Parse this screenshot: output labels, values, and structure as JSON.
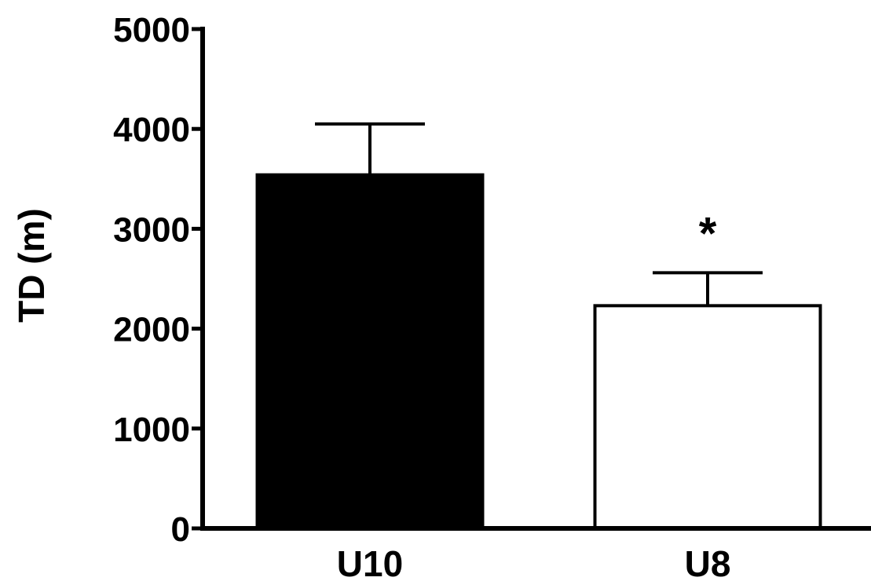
{
  "chart_data": {
    "type": "bar",
    "title": "",
    "xlabel": "",
    "ylabel": "TD (m)",
    "ylim": [
      0,
      5000
    ],
    "yticks": [
      0,
      1000,
      2000,
      3000,
      4000,
      5000
    ],
    "ytick_labels": [
      "0",
      "1000",
      "2000",
      "3000",
      "4000",
      "5000"
    ],
    "categories": [
      "U10",
      "U8"
    ],
    "values": [
      3540,
      2230
    ],
    "errors": [
      510,
      330
    ],
    "bar_colors": [
      "#000000",
      "#ffffff"
    ],
    "annotations": [
      {
        "category": "U8",
        "text": "*"
      }
    ],
    "grid": false,
    "legend": "none"
  }
}
